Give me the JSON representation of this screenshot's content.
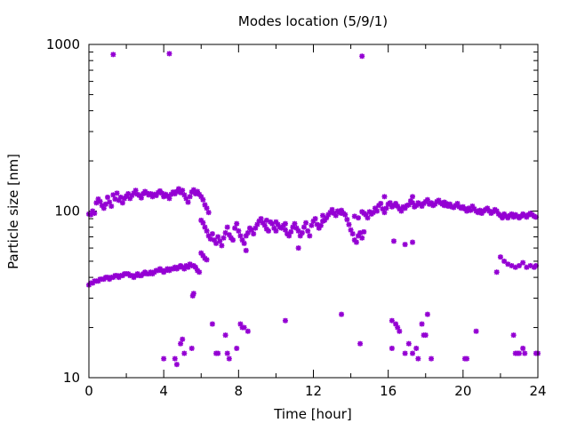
{
  "chart_data": {
    "type": "scatter",
    "title": "Modes location (5/9/1)",
    "xlabel": "Time [hour]",
    "ylabel": "Particle size [nm]",
    "xlim": [
      0,
      24
    ],
    "ylim": [
      10,
      1000
    ],
    "yscale": "log",
    "x_ticks": [
      0,
      4,
      8,
      12,
      16,
      20,
      24
    ],
    "x_tick_labels": [
      "0",
      "4",
      "8",
      "12",
      "16",
      "20",
      "24"
    ],
    "y_ticks": [
      10,
      100,
      1000
    ],
    "y_tick_labels": [
      "10",
      "100",
      "1000"
    ],
    "grid": false,
    "legend": "none",
    "marker_color": "#9400d3",
    "points": [
      [
        0.0,
        36
      ],
      [
        0.1,
        37
      ],
      [
        0.2,
        37
      ],
      [
        0.3,
        38
      ],
      [
        0.4,
        38
      ],
      [
        0.5,
        38
      ],
      [
        0.6,
        39
      ],
      [
        0.7,
        39
      ],
      [
        0.8,
        39
      ],
      [
        0.9,
        40
      ],
      [
        1.0,
        40
      ],
      [
        1.1,
        39
      ],
      [
        1.2,
        40
      ],
      [
        1.3,
        40
      ],
      [
        1.4,
        41
      ],
      [
        1.5,
        41
      ],
      [
        1.6,
        40
      ],
      [
        1.7,
        41
      ],
      [
        1.8,
        41
      ],
      [
        1.9,
        42
      ],
      [
        2.0,
        42
      ],
      [
        2.1,
        42
      ],
      [
        2.2,
        41
      ],
      [
        2.3,
        41
      ],
      [
        2.4,
        40
      ],
      [
        2.5,
        41
      ],
      [
        2.6,
        42
      ],
      [
        2.7,
        41
      ],
      [
        2.8,
        41
      ],
      [
        2.9,
        42
      ],
      [
        3.0,
        43
      ],
      [
        3.1,
        42
      ],
      [
        3.2,
        42
      ],
      [
        3.3,
        43
      ],
      [
        3.4,
        42
      ],
      [
        3.5,
        43
      ],
      [
        3.6,
        44
      ],
      [
        3.7,
        44
      ],
      [
        3.8,
        45
      ],
      [
        3.9,
        44
      ],
      [
        4.0,
        43
      ],
      [
        4.1,
        44
      ],
      [
        4.2,
        45
      ],
      [
        4.3,
        44
      ],
      [
        4.4,
        45
      ],
      [
        4.5,
        45
      ],
      [
        4.6,
        46
      ],
      [
        4.7,
        45
      ],
      [
        4.8,
        46
      ],
      [
        4.9,
        47
      ],
      [
        5.0,
        46
      ],
      [
        5.1,
        45
      ],
      [
        5.2,
        47
      ],
      [
        5.3,
        46
      ],
      [
        5.4,
        48
      ],
      [
        5.5,
        47
      ],
      [
        5.6,
        47
      ],
      [
        5.7,
        46
      ],
      [
        5.8,
        44
      ],
      [
        5.9,
        43
      ],
      [
        5.6,
        32
      ],
      [
        5.55,
        31
      ],
      [
        6.0,
        56
      ],
      [
        6.1,
        54
      ],
      [
        6.2,
        52
      ],
      [
        6.3,
        51
      ],
      [
        0.0,
        96
      ],
      [
        0.1,
        95
      ],
      [
        0.2,
        100
      ],
      [
        0.3,
        97
      ],
      [
        0.4,
        112
      ],
      [
        0.5,
        118
      ],
      [
        0.6,
        114
      ],
      [
        0.7,
        108
      ],
      [
        0.8,
        104
      ],
      [
        0.9,
        110
      ],
      [
        1.0,
        121
      ],
      [
        1.1,
        113
      ],
      [
        1.2,
        107
      ],
      [
        1.3,
        125
      ],
      [
        1.4,
        118
      ],
      [
        1.5,
        128
      ],
      [
        1.6,
        116
      ],
      [
        1.7,
        121
      ],
      [
        1.8,
        112
      ],
      [
        1.9,
        119
      ],
      [
        2.0,
        123
      ],
      [
        2.1,
        127
      ],
      [
        2.2,
        119
      ],
      [
        2.3,
        124
      ],
      [
        2.4,
        128
      ],
      [
        2.5,
        133
      ],
      [
        2.6,
        126
      ],
      [
        2.7,
        124
      ],
      [
        2.8,
        120
      ],
      [
        2.9,
        127
      ],
      [
        3.0,
        131
      ],
      [
        3.1,
        128
      ],
      [
        3.2,
        125
      ],
      [
        3.3,
        127
      ],
      [
        3.4,
        122
      ],
      [
        3.5,
        126
      ],
      [
        3.6,
        124
      ],
      [
        3.7,
        129
      ],
      [
        3.8,
        132
      ],
      [
        3.9,
        128
      ],
      [
        4.0,
        122
      ],
      [
        4.1,
        126
      ],
      [
        4.2,
        123
      ],
      [
        4.3,
        119
      ],
      [
        4.4,
        126
      ],
      [
        4.5,
        130
      ],
      [
        4.6,
        127
      ],
      [
        4.7,
        131
      ],
      [
        4.8,
        136
      ],
      [
        4.9,
        129
      ],
      [
        5.0,
        133
      ],
      [
        5.1,
        125
      ],
      [
        5.2,
        119
      ],
      [
        5.3,
        113
      ],
      [
        5.4,
        122
      ],
      [
        5.5,
        130
      ],
      [
        5.6,
        134
      ],
      [
        5.7,
        127
      ],
      [
        5.8,
        131
      ],
      [
        5.9,
        126
      ],
      [
        6.0,
        122
      ],
      [
        6.1,
        117
      ],
      [
        6.2,
        109
      ],
      [
        6.3,
        104
      ],
      [
        6.4,
        98
      ],
      [
        6.0,
        88
      ],
      [
        6.1,
        85
      ],
      [
        6.2,
        80
      ],
      [
        6.3,
        76
      ],
      [
        6.4,
        71
      ],
      [
        6.5,
        68
      ],
      [
        6.6,
        73
      ],
      [
        6.7,
        67
      ],
      [
        6.8,
        64
      ],
      [
        6.9,
        70
      ],
      [
        7.0,
        66
      ],
      [
        7.1,
        62
      ],
      [
        7.2,
        69
      ],
      [
        7.3,
        74
      ],
      [
        7.4,
        80
      ],
      [
        7.5,
        72
      ],
      [
        7.6,
        69
      ],
      [
        7.7,
        67
      ],
      [
        7.8,
        79
      ],
      [
        7.9,
        84
      ],
      [
        8.0,
        76
      ],
      [
        8.1,
        71
      ],
      [
        8.2,
        67
      ],
      [
        8.3,
        64
      ],
      [
        8.4,
        71
      ],
      [
        8.5,
        74
      ],
      [
        8.6,
        79
      ],
      [
        8.7,
        77
      ],
      [
        8.8,
        73
      ],
      [
        8.9,
        79
      ],
      [
        9.0,
        83
      ],
      [
        9.1,
        87
      ],
      [
        9.2,
        90
      ],
      [
        9.3,
        85
      ],
      [
        9.4,
        82
      ],
      [
        9.5,
        78
      ],
      [
        9.6,
        76
      ],
      [
        9.7,
        86
      ],
      [
        9.8,
        84
      ],
      [
        9.9,
        79
      ],
      [
        10.0,
        76
      ],
      [
        10.1,
        83
      ],
      [
        10.2,
        80
      ],
      [
        10.3,
        79
      ],
      [
        10.4,
        82
      ],
      [
        10.5,
        77
      ],
      [
        10.6,
        73
      ],
      [
        10.7,
        71
      ],
      [
        10.8,
        75
      ],
      [
        10.9,
        80
      ],
      [
        11.0,
        84
      ],
      [
        11.1,
        79
      ],
      [
        11.2,
        76
      ],
      [
        11.3,
        71
      ],
      [
        11.4,
        74
      ],
      [
        11.5,
        80
      ],
      [
        11.6,
        85
      ],
      [
        11.7,
        76
      ],
      [
        11.8,
        71
      ],
      [
        11.9,
        82
      ],
      [
        12.0,
        87
      ],
      [
        12.1,
        90
      ],
      [
        12.2,
        83
      ],
      [
        12.3,
        79
      ],
      [
        12.4,
        82
      ],
      [
        12.5,
        87
      ],
      [
        12.6,
        88
      ],
      [
        12.7,
        91
      ],
      [
        12.8,
        95
      ],
      [
        12.9,
        98
      ],
      [
        13.0,
        102
      ],
      [
        13.1,
        97
      ],
      [
        13.2,
        94
      ],
      [
        13.3,
        100
      ],
      [
        13.4,
        98
      ],
      [
        13.5,
        101
      ],
      [
        13.6,
        97
      ],
      [
        13.7,
        95
      ],
      [
        13.8,
        89
      ],
      [
        13.9,
        83
      ],
      [
        14.0,
        77
      ],
      [
        14.1,
        73
      ],
      [
        14.2,
        67
      ],
      [
        14.3,
        65
      ],
      [
        14.4,
        71
      ],
      [
        14.5,
        74
      ],
      [
        14.6,
        69
      ],
      [
        14.7,
        75
      ],
      [
        14.7,
        97
      ],
      [
        14.8,
        95
      ],
      [
        14.9,
        91
      ],
      [
        15.0,
        99
      ],
      [
        15.1,
        96
      ],
      [
        15.2,
        98
      ],
      [
        15.3,
        104
      ],
      [
        15.4,
        100
      ],
      [
        15.5,
        108
      ],
      [
        15.6,
        111
      ],
      [
        15.7,
        103
      ],
      [
        15.8,
        98
      ],
      [
        15.9,
        104
      ],
      [
        16.0,
        110
      ],
      [
        16.1,
        112
      ],
      [
        16.2,
        106
      ],
      [
        16.3,
        108
      ],
      [
        16.4,
        111
      ],
      [
        16.5,
        107
      ],
      [
        16.6,
        103
      ],
      [
        16.7,
        100
      ],
      [
        16.8,
        106
      ],
      [
        16.9,
        104
      ],
      [
        17.0,
        108
      ],
      [
        17.1,
        109
      ],
      [
        17.2,
        115
      ],
      [
        17.3,
        112
      ],
      [
        17.4,
        106
      ],
      [
        17.5,
        108
      ],
      [
        17.6,
        112
      ],
      [
        17.7,
        110
      ],
      [
        17.8,
        107
      ],
      [
        17.9,
        111
      ],
      [
        18.0,
        114
      ],
      [
        18.1,
        117
      ],
      [
        18.2,
        110
      ],
      [
        18.3,
        112
      ],
      [
        18.4,
        108
      ],
      [
        18.5,
        110
      ],
      [
        18.6,
        114
      ],
      [
        18.7,
        116
      ],
      [
        18.8,
        112
      ],
      [
        18.9,
        110
      ],
      [
        19.0,
        108
      ],
      [
        19.1,
        111
      ],
      [
        19.2,
        107
      ],
      [
        19.3,
        110
      ],
      [
        19.4,
        106
      ],
      [
        19.5,
        105
      ],
      [
        19.6,
        108
      ],
      [
        19.7,
        111
      ],
      [
        19.8,
        106
      ],
      [
        19.9,
        104
      ],
      [
        20.0,
        106
      ],
      [
        20.1,
        103
      ],
      [
        20.2,
        100
      ],
      [
        20.3,
        104
      ],
      [
        20.4,
        101
      ],
      [
        20.5,
        107
      ],
      [
        20.6,
        103
      ],
      [
        20.7,
        100
      ],
      [
        20.8,
        98
      ],
      [
        20.9,
        101
      ],
      [
        21.0,
        97
      ],
      [
        21.1,
        100
      ],
      [
        21.2,
        102
      ],
      [
        21.3,
        104
      ],
      [
        21.4,
        100
      ],
      [
        21.5,
        97
      ],
      [
        21.6,
        99
      ],
      [
        21.7,
        102
      ],
      [
        21.8,
        100
      ],
      [
        21.9,
        96
      ],
      [
        22.0,
        94
      ],
      [
        22.1,
        91
      ],
      [
        22.2,
        96
      ],
      [
        22.3,
        93
      ],
      [
        22.4,
        91
      ],
      [
        22.5,
        94
      ],
      [
        22.6,
        96
      ],
      [
        22.7,
        92
      ],
      [
        22.8,
        95
      ],
      [
        22.9,
        93
      ],
      [
        23.0,
        91
      ],
      [
        23.1,
        93
      ],
      [
        23.2,
        96
      ],
      [
        23.3,
        94
      ],
      [
        23.4,
        92
      ],
      [
        23.5,
        95
      ],
      [
        23.6,
        97
      ],
      [
        23.7,
        95
      ],
      [
        23.8,
        93
      ],
      [
        23.9,
        92
      ],
      [
        9.5,
        88
      ],
      [
        10.0,
        86
      ],
      [
        10.5,
        84
      ],
      [
        12.5,
        94
      ],
      [
        13.5,
        97
      ],
      [
        14.2,
        93
      ],
      [
        14.4,
        91
      ],
      [
        14.6,
        99
      ],
      [
        15.8,
        122
      ],
      [
        17.3,
        122
      ],
      [
        19.0,
        113
      ],
      [
        16.3,
        66
      ],
      [
        16.9,
        63
      ],
      [
        17.3,
        65
      ],
      [
        22.0,
        53
      ],
      [
        22.2,
        50
      ],
      [
        22.4,
        48
      ],
      [
        22.6,
        47
      ],
      [
        22.8,
        46
      ],
      [
        23.0,
        47
      ],
      [
        23.2,
        49
      ],
      [
        23.4,
        46
      ],
      [
        23.6,
        47
      ],
      [
        23.8,
        46
      ],
      [
        23.9,
        47
      ],
      [
        21.8,
        43
      ],
      [
        8.4,
        58
      ],
      [
        11.2,
        60
      ],
      [
        1.3,
        870
      ],
      [
        4.3,
        880
      ],
      [
        14.6,
        850
      ],
      [
        4.0,
        13
      ],
      [
        4.6,
        13
      ],
      [
        4.7,
        12
      ],
      [
        4.9,
        16
      ],
      [
        5.0,
        17
      ],
      [
        5.1,
        14
      ],
      [
        5.5,
        15
      ],
      [
        6.6,
        21
      ],
      [
        6.8,
        14
      ],
      [
        6.9,
        14
      ],
      [
        7.3,
        18
      ],
      [
        7.4,
        14
      ],
      [
        7.5,
        13
      ],
      [
        7.9,
        15
      ],
      [
        8.1,
        21
      ],
      [
        8.2,
        20
      ],
      [
        8.3,
        20
      ],
      [
        8.5,
        19
      ],
      [
        10.5,
        22
      ],
      [
        13.5,
        24
      ],
      [
        14.5,
        16
      ],
      [
        16.2,
        22
      ],
      [
        16.4,
        21
      ],
      [
        16.5,
        20
      ],
      [
        16.6,
        19
      ],
      [
        16.2,
        15
      ],
      [
        16.9,
        14
      ],
      [
        17.1,
        16
      ],
      [
        17.3,
        14
      ],
      [
        17.5,
        15
      ],
      [
        17.6,
        13
      ],
      [
        17.8,
        21
      ],
      [
        17.9,
        18
      ],
      [
        18.0,
        18
      ],
      [
        18.1,
        24
      ],
      [
        18.3,
        13
      ],
      [
        20.1,
        13
      ],
      [
        20.2,
        13
      ],
      [
        20.7,
        19
      ],
      [
        22.7,
        18
      ],
      [
        22.8,
        14
      ],
      [
        22.9,
        14
      ],
      [
        23.0,
        14
      ],
      [
        23.2,
        15
      ],
      [
        23.3,
        14
      ],
      [
        23.9,
        14
      ],
      [
        24.0,
        14
      ]
    ]
  }
}
